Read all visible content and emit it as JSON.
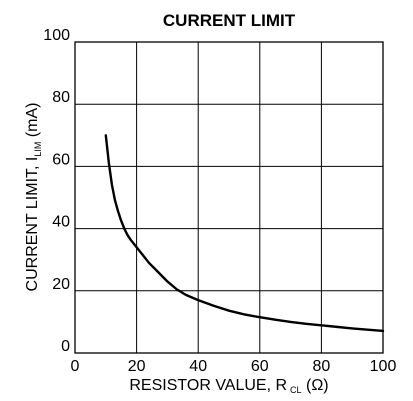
{
  "chart_data": {
    "type": "line",
    "title": "CURRENT LIMIT",
    "xlabel": {
      "main": "RESISTOR VALUE, R",
      "subscript": "CL",
      "unit": " (Ω)"
    },
    "ylabel": {
      "main": "CURRENT LIMIT, I",
      "subscript": "LIM",
      "unit": " (mA)"
    },
    "xlim": [
      0,
      100
    ],
    "ylim": [
      0,
      100
    ],
    "x_ticks": [
      0,
      20,
      40,
      60,
      80,
      100
    ],
    "y_ticks": [
      0,
      20,
      40,
      60,
      80,
      100
    ],
    "grid": true,
    "series": [
      {
        "x": [
          10,
          11,
          12,
          13,
          14,
          15,
          16,
          17,
          18,
          20,
          22,
          24,
          26,
          28,
          30,
          33,
          36,
          40,
          45,
          50,
          55,
          60,
          65,
          70,
          75,
          80,
          85,
          90,
          95,
          100
        ],
        "y": [
          70,
          61,
          54,
          49,
          45.5,
          42.5,
          40,
          38,
          36.5,
          34,
          31.5,
          29,
          27,
          25,
          23,
          20.5,
          18.7,
          17,
          15.2,
          13.6,
          12.4,
          11.5,
          10.7,
          10.0,
          9.4,
          8.9,
          8.4,
          7.9,
          7.5,
          7.1
        ],
        "color": "#000000"
      }
    ]
  }
}
